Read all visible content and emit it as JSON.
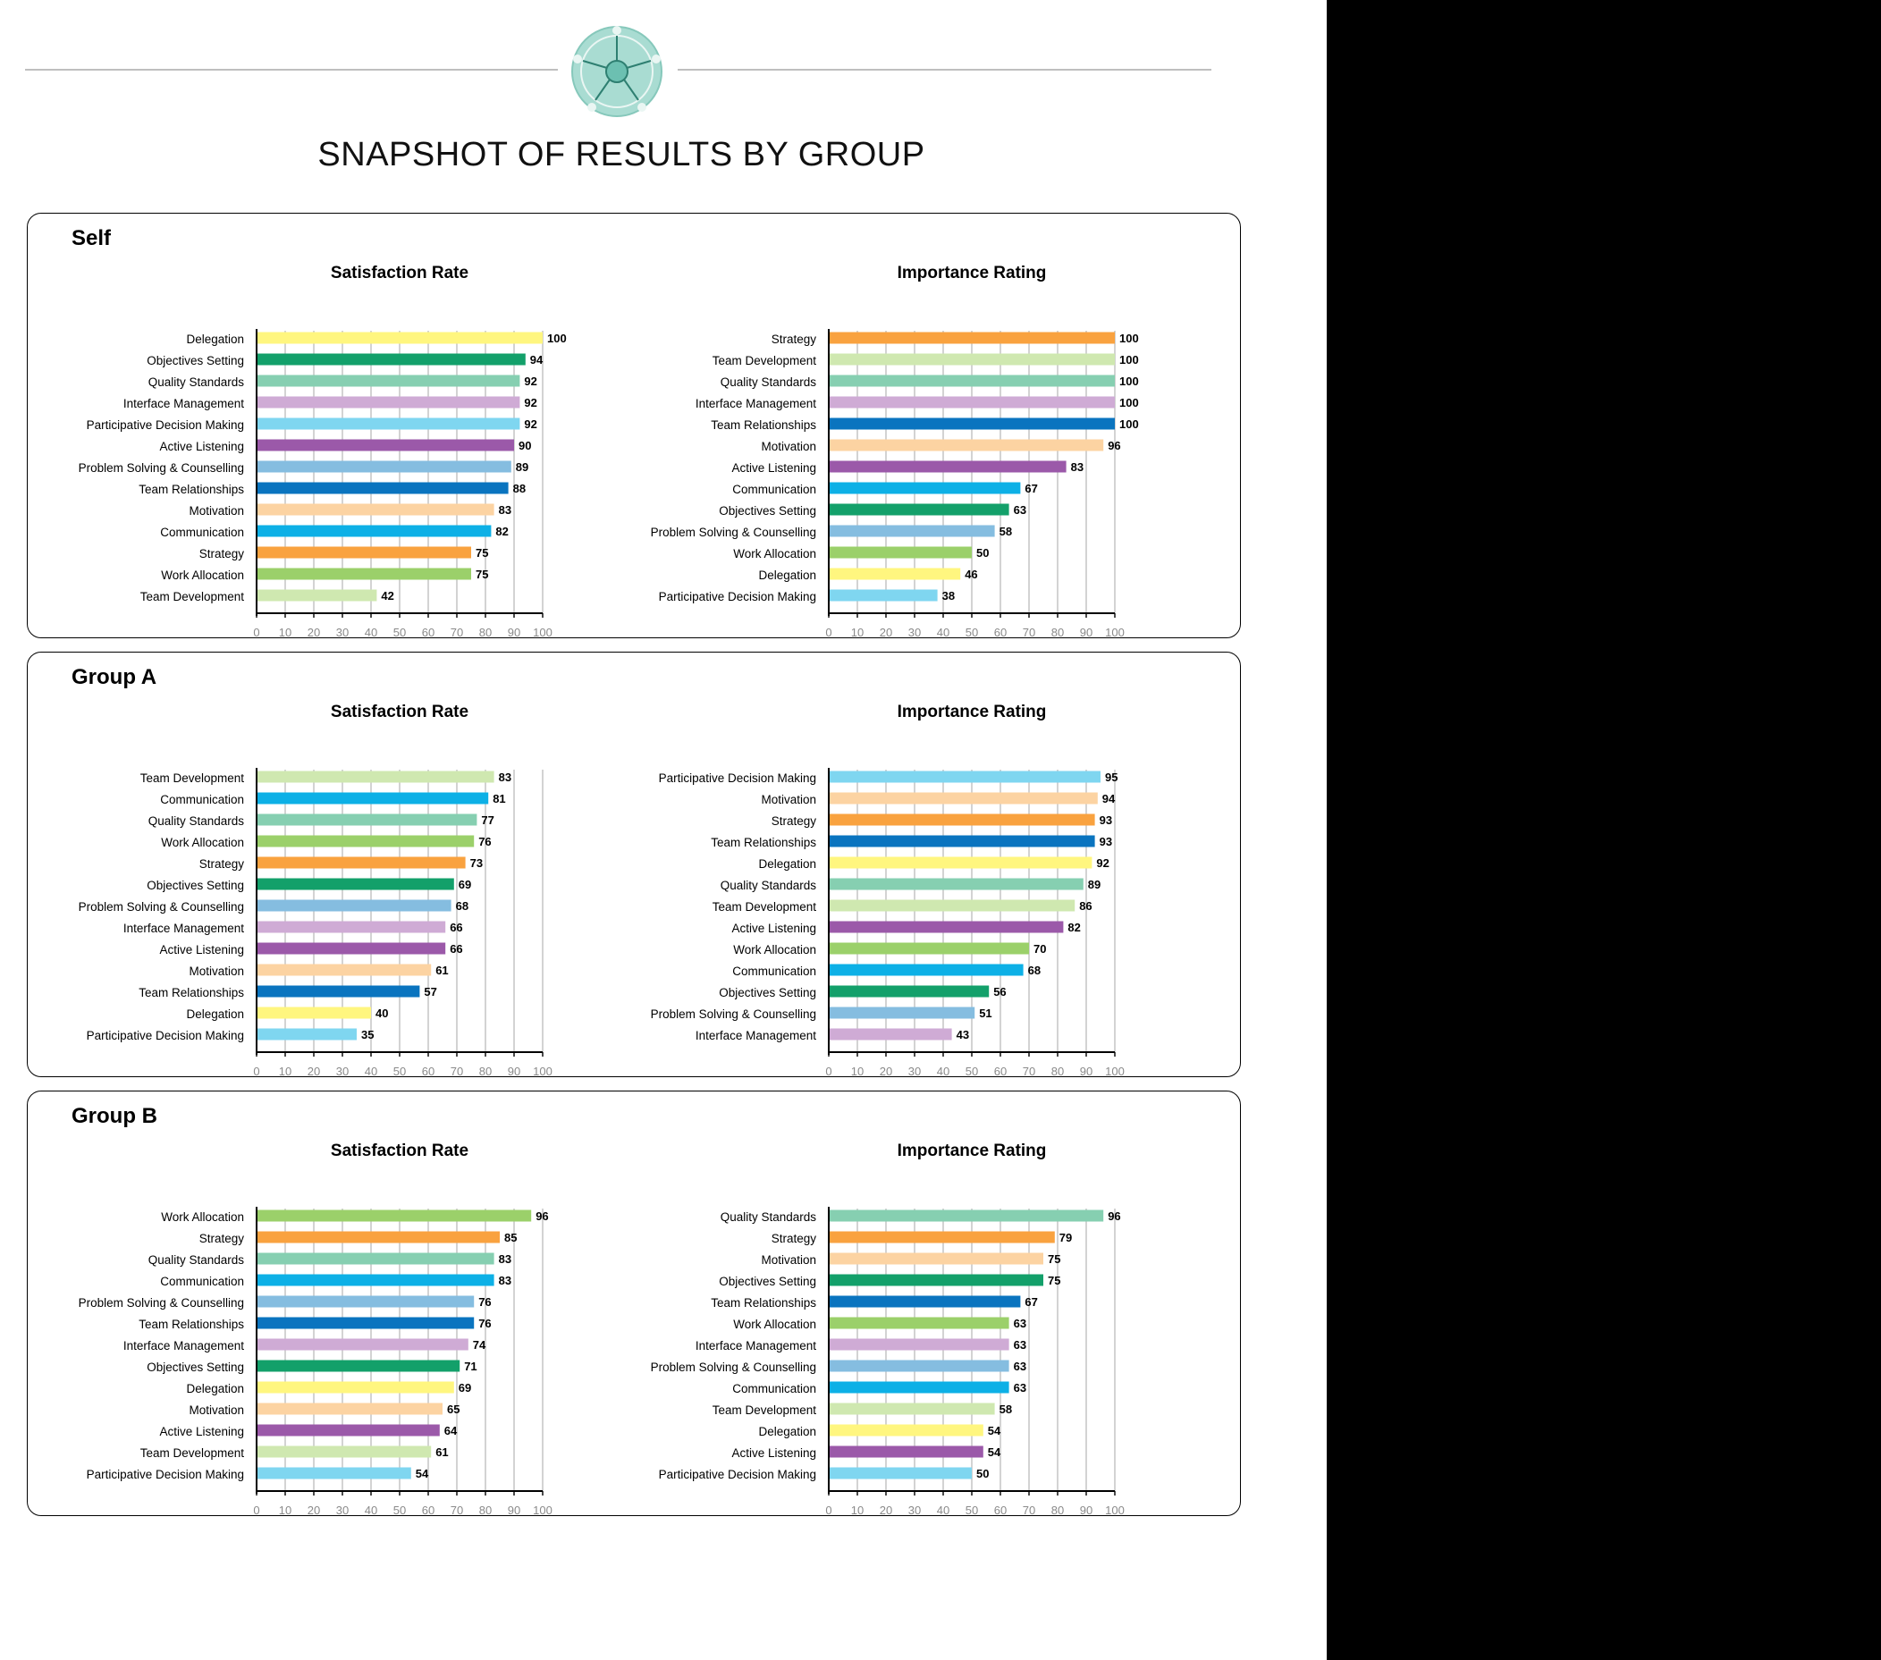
{
  "page": {
    "title": "SNAPSHOT OF RESULTS BY GROUP"
  },
  "logo": {
    "icon": "puzzle-wheel-logo",
    "color": "#a9dcd2"
  },
  "chart_data": [
    {
      "group": "Self",
      "title": "Satisfaction Rate",
      "type": "bar",
      "orientation": "horizontal",
      "xlim": [
        0,
        100
      ],
      "ticks": [
        0,
        10,
        20,
        30,
        40,
        50,
        60,
        70,
        80,
        90,
        100
      ],
      "grid": true,
      "categories": [
        "Delegation",
        "Objectives Setting",
        "Quality Standards",
        "Interface Management",
        "Participative Decision Making",
        "Active Listening",
        "Problem Solving & Counselling",
        "Team Relationships",
        "Motivation",
        "Communication",
        "Strategy",
        "Work Allocation",
        "Team Development"
      ],
      "values": [
        100,
        94,
        92,
        92,
        92,
        90,
        89,
        88,
        83,
        82,
        75,
        75,
        42
      ]
    },
    {
      "group": "Self",
      "title": "Importance Rating",
      "type": "bar",
      "orientation": "horizontal",
      "xlim": [
        0,
        100
      ],
      "ticks": [
        0,
        10,
        20,
        30,
        40,
        50,
        60,
        70,
        80,
        90,
        100
      ],
      "grid": true,
      "categories": [
        "Strategy",
        "Team Development",
        "Quality Standards",
        "Interface Management",
        "Team Relationships",
        "Motivation",
        "Active Listening",
        "Communication",
        "Objectives Setting",
        "Problem Solving & Counselling",
        "Work Allocation",
        "Delegation",
        "Participative Decision Making"
      ],
      "values": [
        100,
        100,
        100,
        100,
        100,
        96,
        83,
        67,
        63,
        58,
        50,
        46,
        38
      ]
    },
    {
      "group": "Group A",
      "title": "Satisfaction Rate",
      "type": "bar",
      "orientation": "horizontal",
      "xlim": [
        0,
        100
      ],
      "ticks": [
        0,
        10,
        20,
        30,
        40,
        50,
        60,
        70,
        80,
        90,
        100
      ],
      "grid": true,
      "categories": [
        "Team Development",
        "Communication",
        "Quality Standards",
        "Work Allocation",
        "Strategy",
        "Objectives Setting",
        "Problem Solving & Counselling",
        "Interface Management",
        "Active Listening",
        "Motivation",
        "Team Relationships",
        "Delegation",
        "Participative Decision Making"
      ],
      "values": [
        83,
        81,
        77,
        76,
        73,
        69,
        68,
        66,
        66,
        61,
        57,
        40,
        35
      ]
    },
    {
      "group": "Group A",
      "title": "Importance Rating",
      "type": "bar",
      "orientation": "horizontal",
      "xlim": [
        0,
        100
      ],
      "ticks": [
        0,
        10,
        20,
        30,
        40,
        50,
        60,
        70,
        80,
        90,
        100
      ],
      "grid": true,
      "categories": [
        "Participative Decision Making",
        "Motivation",
        "Strategy",
        "Team Relationships",
        "Delegation",
        "Quality Standards",
        "Team Development",
        "Active Listening",
        "Work Allocation",
        "Communication",
        "Objectives Setting",
        "Problem Solving & Counselling",
        "Interface Management"
      ],
      "values": [
        95,
        94,
        93,
        93,
        92,
        89,
        86,
        82,
        70,
        68,
        56,
        51,
        43
      ]
    },
    {
      "group": "Group B",
      "title": "Satisfaction Rate",
      "type": "bar",
      "orientation": "horizontal",
      "xlim": [
        0,
        100
      ],
      "ticks": [
        0,
        10,
        20,
        30,
        40,
        50,
        60,
        70,
        80,
        90,
        100
      ],
      "grid": true,
      "categories": [
        "Work Allocation",
        "Strategy",
        "Quality Standards",
        "Communication",
        "Problem Solving & Counselling",
        "Team Relationships",
        "Interface Management",
        "Objectives Setting",
        "Delegation",
        "Motivation",
        "Active Listening",
        "Team Development",
        "Participative Decision Making"
      ],
      "values": [
        96,
        85,
        83,
        83,
        76,
        76,
        74,
        71,
        69,
        65,
        64,
        61,
        54
      ]
    },
    {
      "group": "Group B",
      "title": "Importance Rating",
      "type": "bar",
      "orientation": "horizontal",
      "xlim": [
        0,
        100
      ],
      "ticks": [
        0,
        10,
        20,
        30,
        40,
        50,
        60,
        70,
        80,
        90,
        100
      ],
      "grid": true,
      "categories": [
        "Quality Standards",
        "Strategy",
        "Motivation",
        "Objectives Setting",
        "Team Relationships",
        "Work Allocation",
        "Interface Management",
        "Problem Solving & Counselling",
        "Communication",
        "Team Development",
        "Delegation",
        "Active Listening",
        "Participative Decision Making"
      ],
      "values": [
        96,
        79,
        75,
        75,
        67,
        63,
        63,
        63,
        63,
        58,
        54,
        54,
        50
      ]
    }
  ],
  "category_colors": {
    "Delegation": "#fff67f",
    "Objectives Setting": "#13a06a",
    "Quality Standards": "#86cfb1",
    "Interface Management": "#cfabd5",
    "Participative Decision Making": "#7fd6f0",
    "Active Listening": "#9b59a9",
    "Problem Solving & Counselling": "#85bde0",
    "Team Relationships": "#0a74bf",
    "Motivation": "#fcd3a2",
    "Communication": "#0db0e6",
    "Strategy": "#f9a23f",
    "Work Allocation": "#9bd06a",
    "Team Development": "#cfe8b0"
  },
  "colors": {
    "gridline": "#c8c8c8",
    "axis": "#000000",
    "tick_label": "#8a8a8a"
  }
}
